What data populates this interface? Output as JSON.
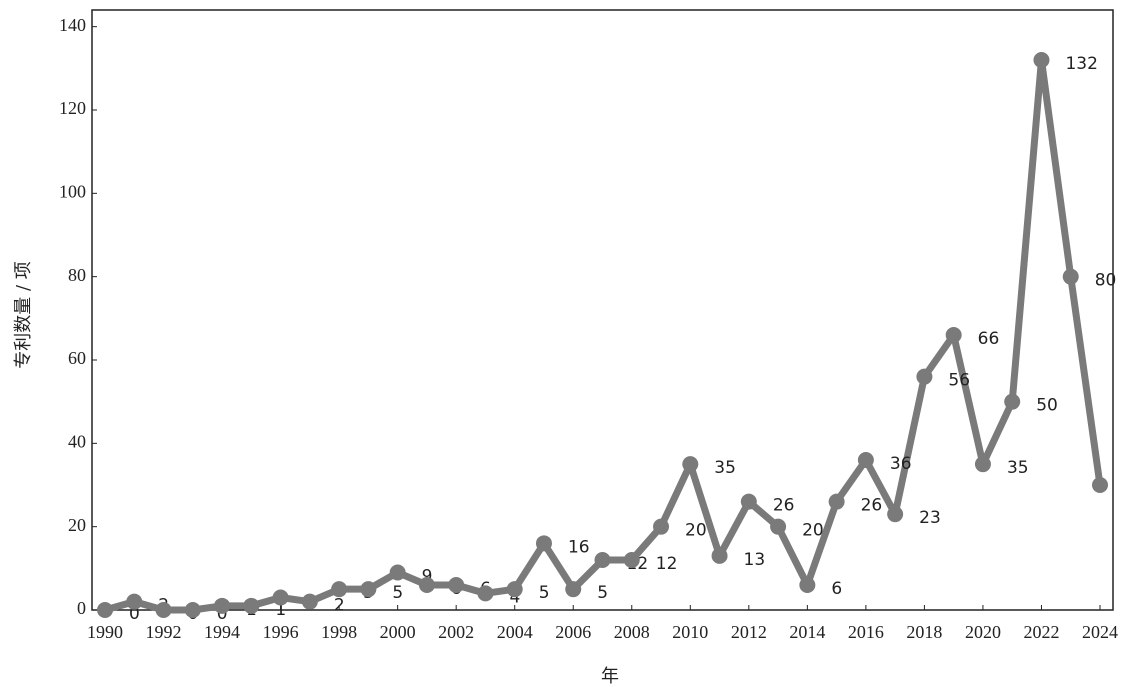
{
  "chart_data": {
    "type": "line",
    "x_label": "年",
    "y_label": "专利数量 / 项",
    "x": [
      1990,
      1991,
      1992,
      1993,
      1994,
      1995,
      1996,
      1997,
      1998,
      1999,
      2000,
      2001,
      2002,
      2003,
      2004,
      2005,
      2006,
      2007,
      2008,
      2009,
      2010,
      2011,
      2012,
      2013,
      2014,
      2015,
      2016,
      2017,
      2018,
      2019,
      2020,
      2021,
      2022,
      2023,
      2024
    ],
    "series": [
      {
        "color": "#7a7a7a",
        "values": [
          0,
          2,
          0,
          0,
          1,
          1,
          3,
          2,
          5,
          5,
          9,
          6,
          6,
          4,
          5,
          16,
          5,
          12,
          12,
          20,
          35,
          13,
          26,
          20,
          6,
          26,
          36,
          23,
          56,
          66,
          35,
          50,
          132,
          80,
          30
        ]
      }
    ],
    "xlim": [
      1990,
      2024
    ],
    "xticks": [
      1990,
      1992,
      1994,
      1996,
      1998,
      2000,
      2002,
      2004,
      2006,
      2008,
      2010,
      2012,
      2014,
      2016,
      2018,
      2020,
      2022,
      2024
    ],
    "ylim": [
      0,
      144
    ],
    "yticks": [
      0,
      20,
      40,
      60,
      80,
      100,
      120,
      140
    ]
  }
}
